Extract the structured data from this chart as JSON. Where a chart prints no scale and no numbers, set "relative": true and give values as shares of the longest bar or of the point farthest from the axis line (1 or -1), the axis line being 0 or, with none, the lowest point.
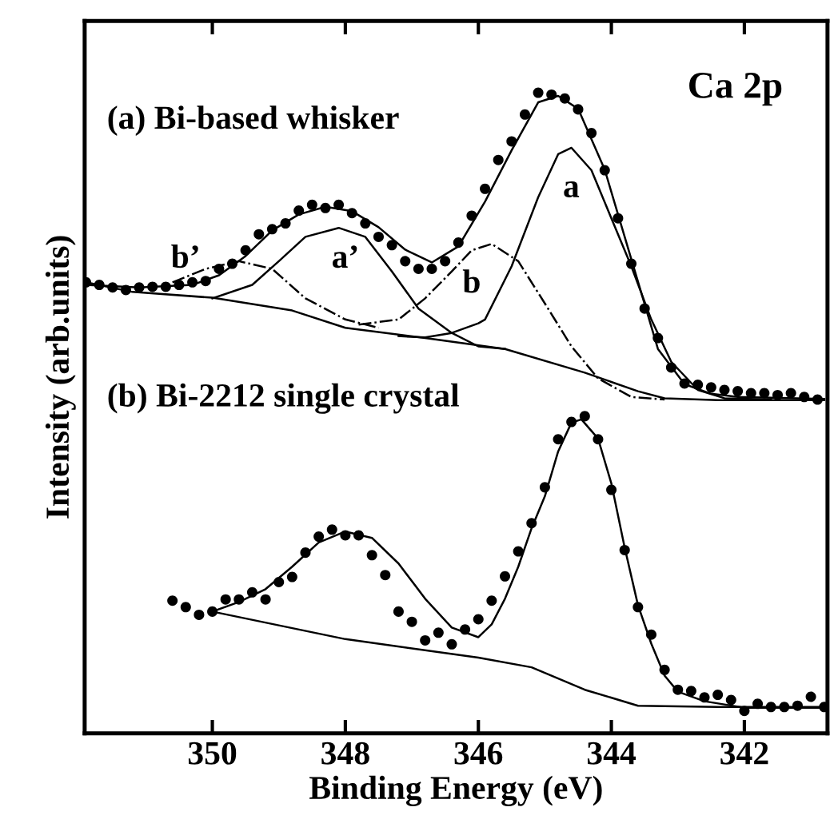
{
  "chart_data": {
    "type": "scatter",
    "relative": true,
    "xlabel": "Binding Energy (eV)",
    "ylabel": "Intensity (arb.units)",
    "xlim": [
      351.92,
      340.75
    ],
    "xticks": [
      350,
      348,
      346,
      344,
      342
    ],
    "grid": false,
    "legend": false,
    "tick_labels": "x",
    "annotations": [
      "Ca 2p",
      "(a) Bi-based whisker",
      "(b) Bi-2212 single crystal",
      "a",
      "a’",
      "b",
      "b’"
    ],
    "series": [
      {
        "marker": "circle",
        "color": "#000000",
        "x": [
          351.9,
          351.7,
          351.5,
          351.3,
          351.1,
          350.9,
          350.7,
          350.5,
          350.3,
          350.1,
          349.9,
          349.7,
          349.5,
          349.3,
          349.1,
          348.9,
          348.7,
          348.5,
          348.3,
          348.1,
          347.9,
          347.7,
          347.5,
          347.3,
          347.1,
          346.9,
          346.7,
          346.5,
          346.3,
          346.1,
          345.9,
          345.7,
          345.5,
          345.3,
          345.1,
          344.9,
          344.7,
          344.5,
          344.3,
          344.1,
          343.9,
          343.7,
          343.5,
          343.3,
          343.1,
          342.9,
          342.7,
          342.5,
          342.3,
          342.1,
          341.9,
          341.7,
          341.5,
          341.3,
          341.1,
          340.9
        ],
        "values": [
          0.704,
          0.7,
          0.696,
          0.692,
          0.696,
          0.697,
          0.697,
          0.7,
          0.704,
          0.706,
          0.725,
          0.733,
          0.754,
          0.779,
          0.787,
          0.796,
          0.816,
          0.825,
          0.82,
          0.825,
          0.812,
          0.796,
          0.775,
          0.762,
          0.737,
          0.725,
          0.725,
          0.737,
          0.766,
          0.808,
          0.85,
          0.895,
          0.924,
          0.966,
          1.0,
          0.997,
          0.991,
          0.974,
          0.937,
          0.879,
          0.804,
          0.733,
          0.663,
          0.617,
          0.571,
          0.546,
          0.544,
          0.54,
          0.536,
          0.534,
          0.531,
          0.531,
          0.528,
          0.531,
          0.525,
          0.521
        ]
      },
      {
        "type": "line",
        "line_style": "solid",
        "color": "#000000",
        "x": [
          351.9,
          351.1,
          350.3,
          349.9,
          349.5,
          349.1,
          348.7,
          348.3,
          347.9,
          347.5,
          347.1,
          346.7,
          346.3,
          345.9,
          345.5,
          345.1,
          344.8,
          344.5,
          344.1,
          343.7,
          343.3,
          342.9,
          342.5,
          342.1,
          340.8
        ],
        "values": [
          0.7,
          0.696,
          0.7,
          0.715,
          0.745,
          0.785,
          0.81,
          0.822,
          0.815,
          0.79,
          0.755,
          0.735,
          0.76,
          0.83,
          0.91,
          0.985,
          0.995,
          0.975,
          0.88,
          0.74,
          0.6,
          0.545,
          0.53,
          0.525,
          0.522
        ]
      },
      {
        "type": "line",
        "line_style": "solid",
        "color": "#000000",
        "x": [
          351.9,
          351.2,
          350.0,
          348.8,
          348.0,
          346.8,
          345.6,
          344.4,
          343.6,
          343.2,
          342.4,
          340.8
        ],
        "values": [
          0.704,
          0.689,
          0.68,
          0.66,
          0.633,
          0.617,
          0.6,
          0.563,
          0.534,
          0.523,
          0.52,
          0.52
        ]
      },
      {
        "type": "line",
        "line_style": "solid",
        "color": "#000000",
        "x": [
          347.2,
          346.8,
          346.4,
          346.0,
          345.9,
          345.5,
          345.1,
          344.8,
          344.6,
          344.3,
          344.0,
          343.7,
          343.4,
          343.1,
          342.7,
          342.3,
          341.6
        ],
        "values": [
          0.62,
          0.618,
          0.625,
          0.64,
          0.646,
          0.729,
          0.837,
          0.904,
          0.914,
          0.879,
          0.804,
          0.729,
          0.646,
          0.58,
          0.536,
          0.523,
          0.521
        ]
      },
      {
        "type": "line",
        "line_style": "solid",
        "color": "#000000",
        "x": [
          350.0,
          349.4,
          349.0,
          348.6,
          348.1,
          347.7,
          347.3,
          346.9,
          346.4,
          346.0,
          345.6
        ],
        "values": [
          0.679,
          0.7,
          0.737,
          0.775,
          0.789,
          0.775,
          0.721,
          0.663,
          0.625,
          0.604,
          0.6
        ]
      },
      {
        "type": "line",
        "line_style": "dashdot",
        "color": "#000000",
        "x": [
          347.8,
          347.2,
          346.8,
          346.4,
          346.1,
          345.8,
          345.4,
          345.0,
          344.6,
          344.2,
          343.7,
          343.2
        ],
        "values": [
          0.638,
          0.646,
          0.679,
          0.721,
          0.754,
          0.764,
          0.737,
          0.671,
          0.604,
          0.554,
          0.525,
          0.521
        ]
      },
      {
        "type": "line",
        "line_style": "dashdot",
        "color": "#000000",
        "x": [
          350.6,
          350.1,
          349.6,
          349.1,
          348.6,
          348.0,
          347.5
        ],
        "values": [
          0.704,
          0.725,
          0.737,
          0.725,
          0.679,
          0.646,
          0.633
        ]
      },
      {
        "marker": "circle",
        "color": "#000000",
        "x": [
          350.6,
          350.4,
          350.2,
          350.0,
          349.8,
          349.6,
          349.4,
          349.2,
          349.0,
          348.8,
          348.6,
          348.4,
          348.2,
          348.0,
          347.8,
          347.6,
          347.4,
          347.2,
          347.0,
          346.8,
          346.6,
          346.4,
          346.2,
          346.0,
          345.8,
          345.6,
          345.4,
          345.2,
          345.0,
          344.8,
          344.6,
          344.4,
          344.2,
          344.0,
          343.8,
          343.6,
          343.4,
          343.2,
          343.0,
          342.8,
          342.6,
          342.4,
          342.2,
          342.0,
          341.8,
          341.6,
          341.4,
          341.2,
          341.0,
          340.8
        ],
        "values": [
          0.207,
          0.197,
          0.185,
          0.19,
          0.209,
          0.209,
          0.22,
          0.209,
          0.236,
          0.244,
          0.282,
          0.307,
          0.318,
          0.309,
          0.309,
          0.278,
          0.247,
          0.19,
          0.174,
          0.145,
          0.157,
          0.139,
          0.162,
          0.178,
          0.207,
          0.245,
          0.284,
          0.328,
          0.384,
          0.459,
          0.486,
          0.495,
          0.459,
          0.38,
          0.286,
          0.197,
          0.154,
          0.099,
          0.068,
          0.066,
          0.056,
          0.06,
          0.052,
          0.035,
          0.046,
          0.041,
          0.041,
          0.043,
          0.057,
          0.041
        ]
      },
      {
        "type": "line",
        "line_style": "solid",
        "color": "#000000",
        "x": [
          350.0,
          349.6,
          349.2,
          348.8,
          348.4,
          348.0,
          347.6,
          347.2,
          346.8,
          346.4,
          346.0,
          345.8,
          345.6,
          345.4,
          345.2,
          345.0,
          344.8,
          344.6,
          344.45,
          344.2,
          344.0,
          343.8,
          343.6,
          343.4,
          343.2,
          343.0,
          342.6,
          342.0,
          340.8
        ],
        "values": [
          0.19,
          0.205,
          0.225,
          0.26,
          0.298,
          0.315,
          0.305,
          0.265,
          0.21,
          0.165,
          0.15,
          0.17,
          0.21,
          0.26,
          0.32,
          0.37,
          0.44,
          0.485,
          0.49,
          0.46,
          0.39,
          0.29,
          0.2,
          0.14,
          0.09,
          0.065,
          0.05,
          0.04,
          0.04
        ]
      },
      {
        "type": "line",
        "line_style": "solid",
        "color": "#000000",
        "x": [
          350.0,
          348.0,
          346.0,
          345.2,
          344.4,
          343.6,
          342.4,
          340.8
        ],
        "values": [
          0.19,
          0.147,
          0.118,
          0.103,
          0.068,
          0.043,
          0.041,
          0.041
        ]
      }
    ]
  }
}
